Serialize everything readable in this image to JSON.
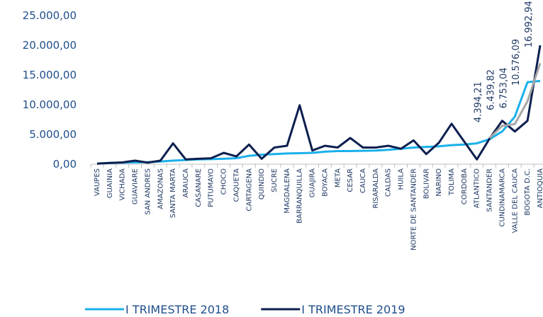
{
  "chart_data": {
    "type": "line",
    "categories": [
      "VAUPES",
      "GUAINIA",
      "VICHADA",
      "GUAVIARE",
      "SAN ANDRES",
      "AMAZONAS",
      "SANTA MARTA",
      "ARAUCA",
      "CASANARE",
      "PUTUMAYO",
      "CHOCO",
      "CAQUETA",
      "CARTAGENA",
      "QUINDIO",
      "SUCRE",
      "MAGDALENA",
      "BARRANQUILLA",
      "GUAJIRA",
      "BOYACA",
      "META",
      "CESAR",
      "CAUCA",
      "RISARALDA",
      "CALDAS",
      "HUILA",
      "NORTE DE SANTANDER",
      "BOLIVAR",
      "NARINO",
      "TOLIMA",
      "CORDOBA",
      "ATLANTICO",
      "SANTANDER",
      "CUNDINAMARCA",
      "VALLE DEL CAUCA",
      "BOGOTA D.C.",
      "ANTIOQUIA"
    ],
    "series": [
      {
        "name": "I TRIMESTRE 2018",
        "color": "#1ab0ea",
        "values": [
          100,
          200,
          250,
          300,
          350,
          450,
          600,
          700,
          800,
          850,
          900,
          1000,
          1400,
          1600,
          1700,
          1800,
          1850,
          1900,
          2100,
          2200,
          2200,
          2250,
          2300,
          2400,
          2600,
          2800,
          2900,
          3000,
          3200,
          3300,
          3500,
          4200,
          5500,
          8000,
          13800,
          14000
        ]
      },
      {
        "name": "I TRIMESTRE 2019",
        "color": "#0d1f4f",
        "values": [
          100,
          200,
          300,
          600,
          250,
          600,
          3500,
          800,
          900,
          1000,
          1900,
          1300,
          3300,
          900,
          2800,
          3100,
          9900,
          2300,
          3100,
          2800,
          4400,
          2800,
          2800,
          3100,
          2600,
          4000,
          1700,
          3600,
          6800,
          3800,
          800,
          4300,
          7300,
          5500,
          7300,
          20000
        ]
      },
      {
        "color": "#a6a6a6",
        "values": [
          null,
          null,
          null,
          null,
          null,
          null,
          null,
          null,
          null,
          null,
          null,
          null,
          null,
          null,
          null,
          null,
          null,
          null,
          null,
          null,
          null,
          null,
          null,
          null,
          null,
          null,
          null,
          null,
          null,
          null,
          null,
          4394.21,
          6439.82,
          6753.04,
          10576.09,
          16992.94
        ],
        "value_labels": [
          null,
          null,
          null,
          null,
          null,
          null,
          null,
          null,
          null,
          null,
          null,
          null,
          null,
          null,
          null,
          null,
          null,
          null,
          null,
          null,
          null,
          null,
          null,
          null,
          null,
          null,
          null,
          null,
          null,
          null,
          null,
          "4.394,21",
          "6.439,82",
          "6.753,04",
          "10.576,09",
          "16.992,94"
        ]
      }
    ],
    "ylim": [
      0,
      25000
    ],
    "yticks": [
      {
        "value": 0,
        "label": "0,00"
      },
      {
        "value": 5000,
        "label": "5.000,00"
      },
      {
        "value": 10000,
        "label": "10.000,00"
      },
      {
        "value": 15000,
        "label": "15.000,00"
      },
      {
        "value": 20000,
        "label": "20.000,00"
      },
      {
        "value": 25000,
        "label": "25.000,00"
      }
    ]
  }
}
